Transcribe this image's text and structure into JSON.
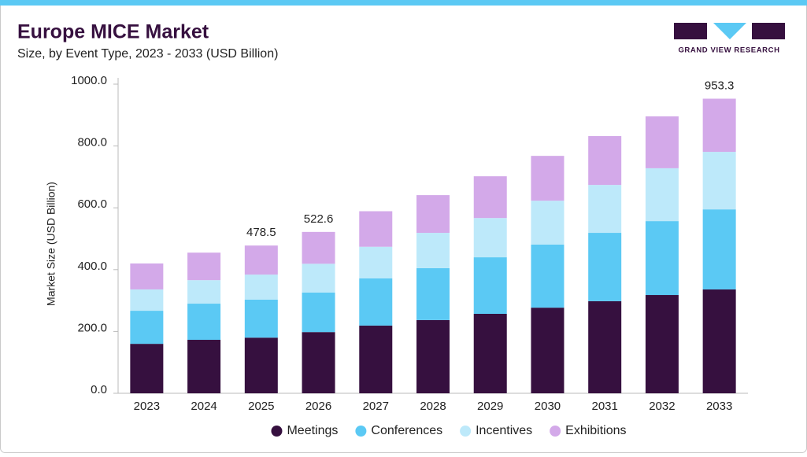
{
  "chart_data": {
    "type": "stacked-bar",
    "title": "Europe MICE Market",
    "subtitle": "Size, by Event Type, 2023 - 2033 (USD Billion)",
    "brand": "GRAND VIEW RESEARCH",
    "y_label": "Market Size (USD Billion)",
    "categories": [
      "2023",
      "2024",
      "2025",
      "2026",
      "2027",
      "2028",
      "2029",
      "2030",
      "2031",
      "2032",
      "2033"
    ],
    "series": [
      {
        "name": "Meetings",
        "color": "#36103f",
        "values": [
          160,
          173,
          180,
          198,
          219,
          237,
          257,
          277,
          298,
          318,
          336
        ]
      },
      {
        "name": "Conferences",
        "color": "#5bc9f4",
        "values": [
          107,
          117,
          123,
          128,
          153,
          168,
          183,
          204,
          221,
          239,
          259
        ]
      },
      {
        "name": "Incentives",
        "color": "#bde9fa",
        "values": [
          69,
          76,
          81,
          93,
          102,
          114,
          127,
          142,
          155,
          171,
          186
        ]
      },
      {
        "name": "Exhibitions",
        "color": "#d3a9e9",
        "values": [
          84,
          89,
          94,
          103,
          115,
          122,
          135,
          145,
          158,
          168,
          172
        ]
      }
    ],
    "total_labels": [
      null,
      null,
      "478.5",
      "522.6",
      null,
      null,
      null,
      null,
      null,
      null,
      "953.3"
    ],
    "ylim": [
      0,
      1000
    ],
    "yticks": [
      {
        "value": 0,
        "label": "0.0"
      },
      {
        "value": 200,
        "label": "200.0"
      },
      {
        "value": 400,
        "label": "400.0"
      },
      {
        "value": 600,
        "label": "600.0"
      },
      {
        "value": 800,
        "label": "800.0"
      },
      {
        "value": 1000,
        "label": "1000.0"
      }
    ],
    "legend": "bottom"
  }
}
